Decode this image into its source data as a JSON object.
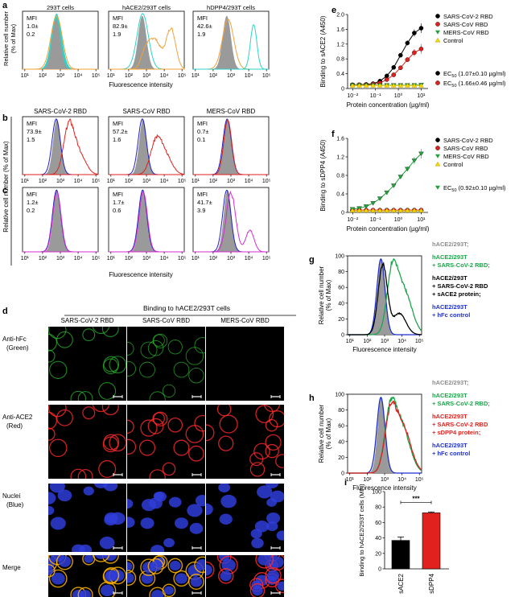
{
  "panel_labels": {
    "a": "a",
    "b": "b",
    "c": "c",
    "d": "d",
    "e": "e",
    "f": "f",
    "g": "g",
    "h": "h",
    "i": "i"
  },
  "flow": {
    "ylabel_a": "Relative cell number",
    "ylabel_a2": "(% of Max)",
    "ylabel_bc": "Relative cell number (% of Max)",
    "xlabel": "Fluorescence intensity",
    "mfi_label": "MFI",
    "ticks": [
      "10¹",
      "10²",
      "10³",
      "10⁴",
      "10⁵"
    ],
    "a": [
      {
        "title": "293T cells",
        "mfi": "1.0±",
        "sd": "0.2"
      },
      {
        "title": "hACE2/293T cells",
        "mfi": "82.9±",
        "sd": "1.9"
      },
      {
        "title": "hDPP4/293T cells",
        "mfi": "42.6±",
        "sd": "1.9"
      }
    ],
    "b_titles": [
      "SARS-CoV-2 RBD",
      "SARS-CoV RBD",
      "MERS-CoV RBD"
    ],
    "b": [
      {
        "mfi": "73.9±",
        "sd": "1.5"
      },
      {
        "mfi": "57.2±",
        "sd": "1.6"
      },
      {
        "mfi": "0.7±",
        "sd": "0.1"
      }
    ],
    "c": [
      {
        "mfi": "1.2±",
        "sd": "0.2"
      },
      {
        "mfi": "1.7±",
        "sd": "0.6"
      },
      {
        "mfi": "41.7±",
        "sd": "3.9"
      }
    ]
  },
  "microscopy": {
    "header": "Binding to hACE2/293T cells",
    "columns": [
      "SARS-CoV-2 RBD",
      "SARS-CoV RBD",
      "MERS-CoV RBD"
    ],
    "rows": [
      {
        "line1": "Anti-hFc",
        "line2": "(Green)"
      },
      {
        "line1": "Anti-ACE2",
        "line2": "(Red)"
      },
      {
        "line1": "Nuclei",
        "line2": "(Blue)"
      },
      {
        "line1": "Merge",
        "line2": ""
      }
    ],
    "colors": {
      "green": "#2fd32f",
      "red": "#ff2a2a",
      "blue": "#2f3dd8",
      "merge_ring": "#ffb300"
    }
  },
  "elisa": {
    "e": {
      "ylabel": "Binding to sACE2 (A450)",
      "xlabel": "Protein concentration (µg/ml)",
      "legend": [
        "SARS-CoV-2 RBD",
        "SARS-CoV   RBD",
        "MERS-CoV   RBD",
        "Control"
      ],
      "ec50": [
        {
          "text": "EC",
          "sub": "50",
          "rest": " (1.07±0.10 µg/ml)"
        },
        {
          "text": "EC",
          "sub": "50",
          "rest": " (1.66±0.46 µg/ml)"
        }
      ]
    },
    "f": {
      "ylabel": "Binding to sDPP4 (A450)",
      "xlabel": "Protein concentration (µg/ml)",
      "legend": [
        "SARS-CoV-2 RBD",
        "SARS-CoV   RBD",
        "MERS-CoV   RBD",
        "Control"
      ],
      "ec50": [
        {
          "text": "EC",
          "sub": "50",
          "rest": " (0.92±0.10 µg/ml)"
        }
      ]
    },
    "yticks": [
      "0",
      "0.4",
      "0.8",
      "1.2",
      "1.6",
      "2.0"
    ],
    "xticks": [
      "10⁻²",
      "10⁻¹",
      "10⁰",
      "10¹"
    ],
    "colors": {
      "sars2": "#000000",
      "sars": "#e0211d",
      "mers": "#1fa33a",
      "control": "#f5d800"
    }
  },
  "chart_data": [
    {
      "panel": "e",
      "type": "line",
      "title": "",
      "xlabel": "Protein concentration (µg/ml)",
      "ylabel": "Binding to sACE2 (A450)",
      "xscale": "log",
      "xlim": [
        0.006,
        20
      ],
      "ylim": [
        0,
        2.0
      ],
      "x": [
        0.0098,
        0.0195,
        0.039,
        0.078,
        0.156,
        0.3125,
        0.625,
        1.25,
        2.5,
        5,
        10
      ],
      "series": [
        {
          "name": "SARS-CoV-2 RBD",
          "color": "#000000",
          "marker": "circle",
          "values": [
            0.1,
            0.1,
            0.11,
            0.13,
            0.2,
            0.34,
            0.57,
            0.9,
            1.23,
            1.5,
            1.63
          ]
        },
        {
          "name": "SARS-CoV   RBD",
          "color": "#e0211d",
          "marker": "circle",
          "values": [
            0.09,
            0.1,
            0.1,
            0.12,
            0.15,
            0.24,
            0.37,
            0.56,
            0.78,
            0.97,
            1.07
          ]
        },
        {
          "name": "MERS-CoV   RBD",
          "color": "#1fa33a",
          "marker": "triangle-down",
          "values": [
            0.09,
            0.09,
            0.09,
            0.09,
            0.09,
            0.09,
            0.09,
            0.09,
            0.09,
            0.09,
            0.1
          ]
        },
        {
          "name": "Control",
          "color": "#f5d800",
          "marker": "triangle-up",
          "values": [
            0.08,
            0.08,
            0.08,
            0.08,
            0.08,
            0.08,
            0.08,
            0.08,
            0.08,
            0.08,
            0.08
          ]
        }
      ]
    },
    {
      "panel": "f",
      "type": "line",
      "title": "",
      "xlabel": "Protein concentration (µg/ml)",
      "ylabel": "Binding to sDPP4 (A450)",
      "xscale": "log",
      "xlim": [
        0.006,
        20
      ],
      "ylim": [
        0,
        1.6
      ],
      "x": [
        0.0098,
        0.0195,
        0.039,
        0.078,
        0.156,
        0.3125,
        0.625,
        1.25,
        2.5,
        5,
        10
      ],
      "series": [
        {
          "name": "SARS-CoV-2 RBD",
          "color": "#000000",
          "marker": "circle",
          "values": [
            0.04,
            0.04,
            0.04,
            0.04,
            0.04,
            0.04,
            0.04,
            0.04,
            0.04,
            0.04,
            0.04
          ]
        },
        {
          "name": "SARS-CoV   RBD",
          "color": "#e0211d",
          "marker": "circle",
          "values": [
            0.05,
            0.05,
            0.05,
            0.05,
            0.05,
            0.05,
            0.05,
            0.05,
            0.05,
            0.05,
            0.05
          ]
        },
        {
          "name": "MERS-CoV   RBD",
          "color": "#1fa33a",
          "marker": "triangle-down",
          "values": [
            0.07,
            0.09,
            0.13,
            0.2,
            0.3,
            0.43,
            0.58,
            0.77,
            0.94,
            1.12,
            1.27
          ]
        },
        {
          "name": "Control",
          "color": "#f5d800",
          "marker": "triangle-up",
          "values": [
            0.04,
            0.04,
            0.04,
            0.04,
            0.04,
            0.04,
            0.04,
            0.04,
            0.04,
            0.04,
            0.04
          ]
        }
      ]
    },
    {
      "panel": "i",
      "type": "bar",
      "title": "",
      "xlabel": "",
      "ylabel": "Binding to hACE2/293T cells (MFI)",
      "ylim": [
        0,
        100
      ],
      "categories": [
        "sACE2",
        "sDPP4"
      ],
      "values": [
        36.8,
        72.5
      ],
      "errors": [
        4.5,
        1.2
      ],
      "colors": [
        "#000000",
        "#e0211d"
      ],
      "annotation": "***",
      "yticks": [
        "0",
        "20",
        "40",
        "60",
        "80",
        "100"
      ]
    }
  ],
  "gh": {
    "ylabel1": "Relative cell number",
    "ylabel2": "(% of Max)",
    "xlabel": "Fluorescence intensity",
    "g_legend": [
      {
        "lines": [
          "hACE2/293T;"
        ],
        "color": "#8c8c8c"
      },
      {
        "lines": [
          "hACE2/293T",
          "+ SARS-CoV-2 RBD;"
        ],
        "color": "#1aa64a"
      },
      {
        "lines": [
          "hACE2/293T",
          "+ SARS-CoV-2 RBD",
          "+ sACE2 protein;"
        ],
        "color": "#000000"
      },
      {
        "lines": [
          "hACE2/293T",
          "+ hFc control"
        ],
        "color": "#1f2fd1"
      }
    ],
    "h_legend": [
      {
        "lines": [
          "hACE2/293T;"
        ],
        "color": "#8c8c8c"
      },
      {
        "lines": [
          "hACE2/293T",
          "+ SARS-CoV-2 RBD;"
        ],
        "color": "#1aa64a"
      },
      {
        "lines": [
          "hACE2/293T",
          "+ SARS-CoV-2 RBD",
          "+ sDPP4 protein;"
        ],
        "color": "#e0211d"
      },
      {
        "lines": [
          "hACE2/293T",
          "+ hFc control"
        ],
        "color": "#1f2fd1"
      }
    ],
    "yticks": [
      "0",
      "20",
      "40",
      "60",
      "80",
      "100"
    ]
  }
}
